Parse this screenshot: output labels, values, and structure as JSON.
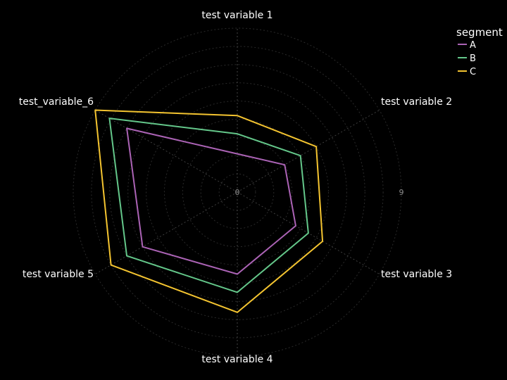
{
  "chart_data": {
    "type": "radar",
    "axes": [
      "test variable 1",
      "test variable 2",
      "test variable 3",
      "test variable 4",
      "test variable 5",
      "test_variable_6"
    ],
    "radial_range": [
      0,
      9
    ],
    "radial_ticks": [
      "0",
      "9"
    ],
    "legend_title": "segment",
    "legend_position": "top-right",
    "grid": true,
    "series": [
      {
        "name": "A",
        "color": "#ab63b5",
        "values": [
          2.1,
          3.0,
          3.7,
          4.5,
          6.0,
          7.0
        ]
      },
      {
        "name": "B",
        "color": "#64c78a",
        "values": [
          3.2,
          4.0,
          4.5,
          5.5,
          7.0,
          8.1
        ]
      },
      {
        "name": "C",
        "color": "#f4c430",
        "values": [
          4.2,
          5.0,
          5.4,
          6.6,
          8.0,
          9.0
        ]
      }
    ]
  }
}
